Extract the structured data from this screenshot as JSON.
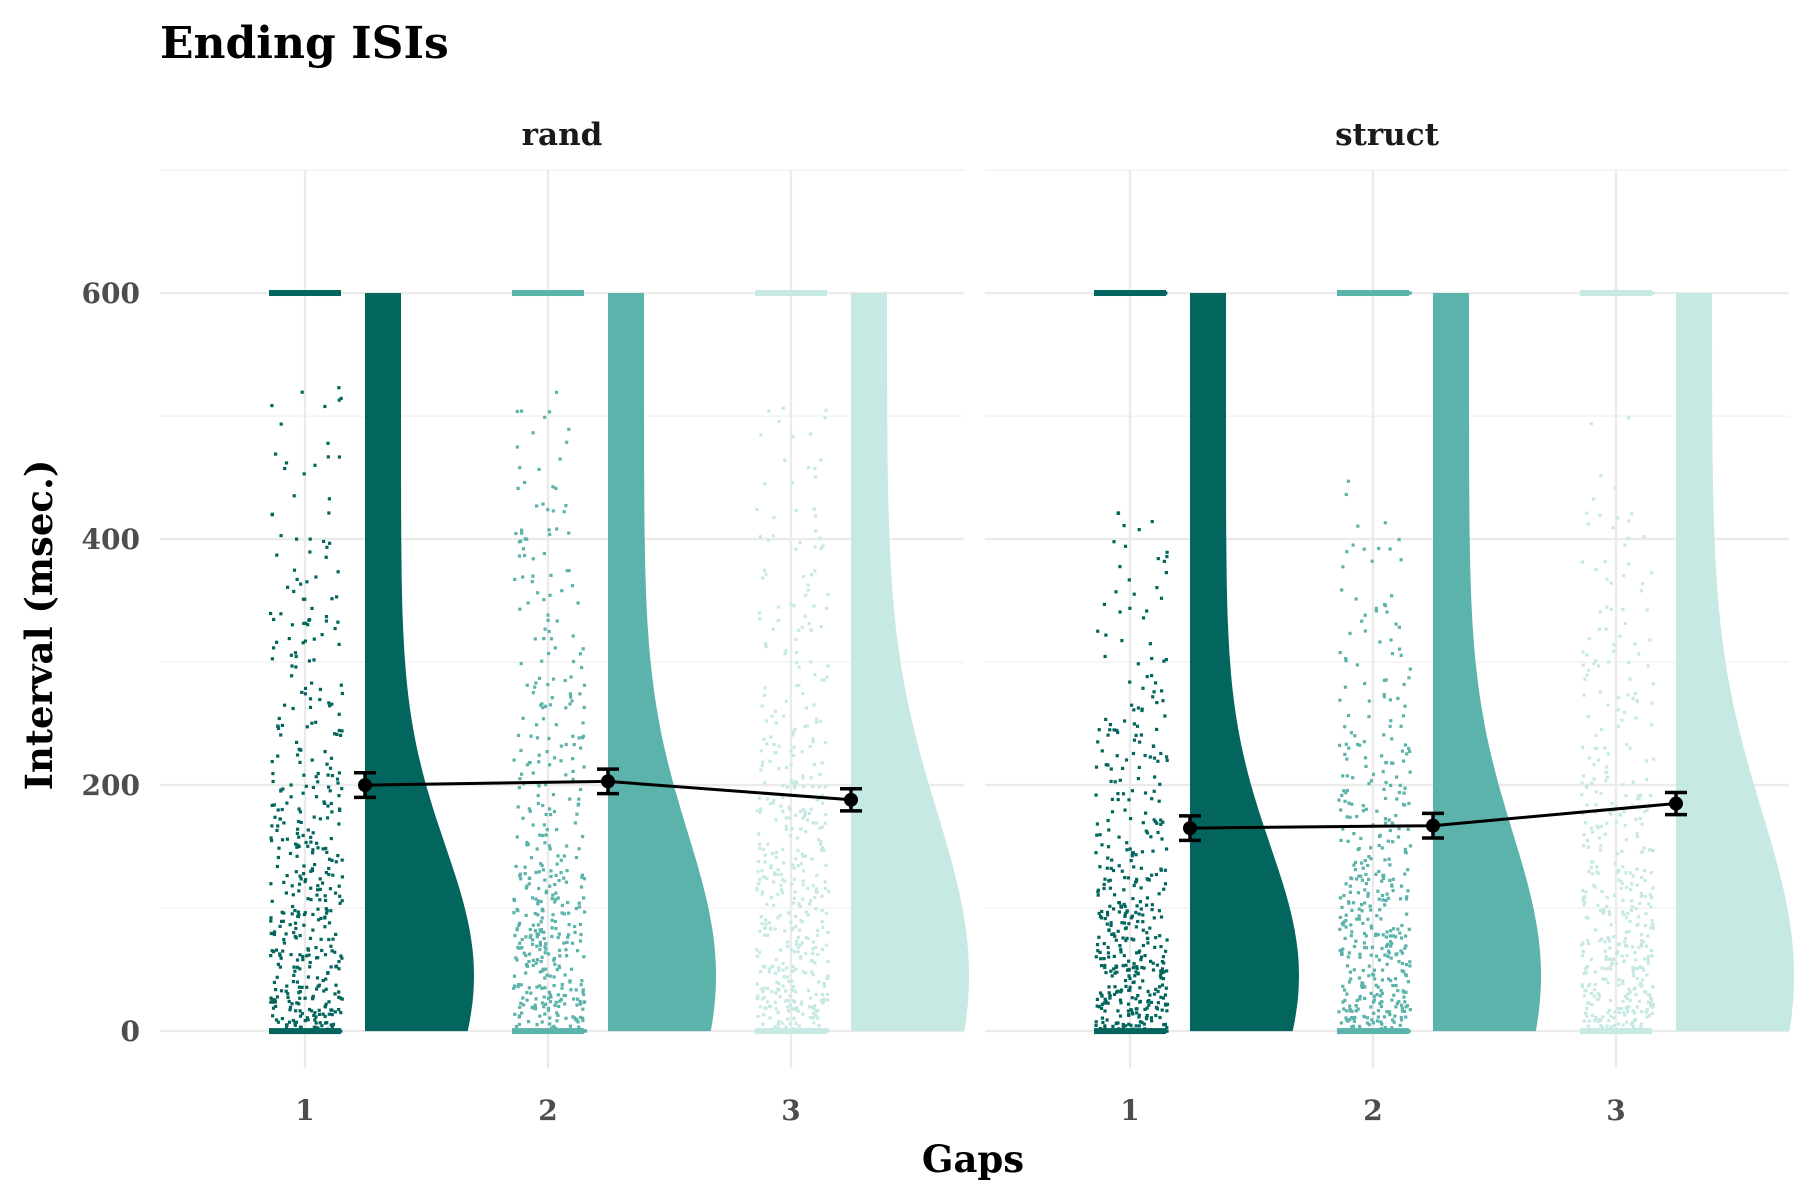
{
  "chart_data": {
    "type": "raincloud",
    "title": "Ending ISIs",
    "xlabel": "Gaps",
    "ylabel": "Interval (msec.)",
    "x_ticks": [
      "1",
      "2",
      "3"
    ],
    "y_ticks": [
      0,
      200,
      400,
      600
    ],
    "ylim": [
      -30,
      700
    ],
    "grid": true,
    "legend": "none",
    "colors": [
      "#02665e",
      "#5bb3ab",
      "#c7e9e3"
    ],
    "panels": [
      {
        "name": "rand",
        "groups": [
          {
            "gap": "1",
            "mean": 200,
            "se": 10
          },
          {
            "gap": "2",
            "mean": 203,
            "se": 10
          },
          {
            "gap": "3",
            "mean": 188,
            "se": 9
          }
        ]
      },
      {
        "name": "struct",
        "groups": [
          {
            "gap": "1",
            "mean": 165,
            "se": 10
          },
          {
            "gap": "2",
            "mean": 167,
            "se": 10
          },
          {
            "gap": "3",
            "mean": 185,
            "se": 9
          }
        ]
      }
    ]
  }
}
